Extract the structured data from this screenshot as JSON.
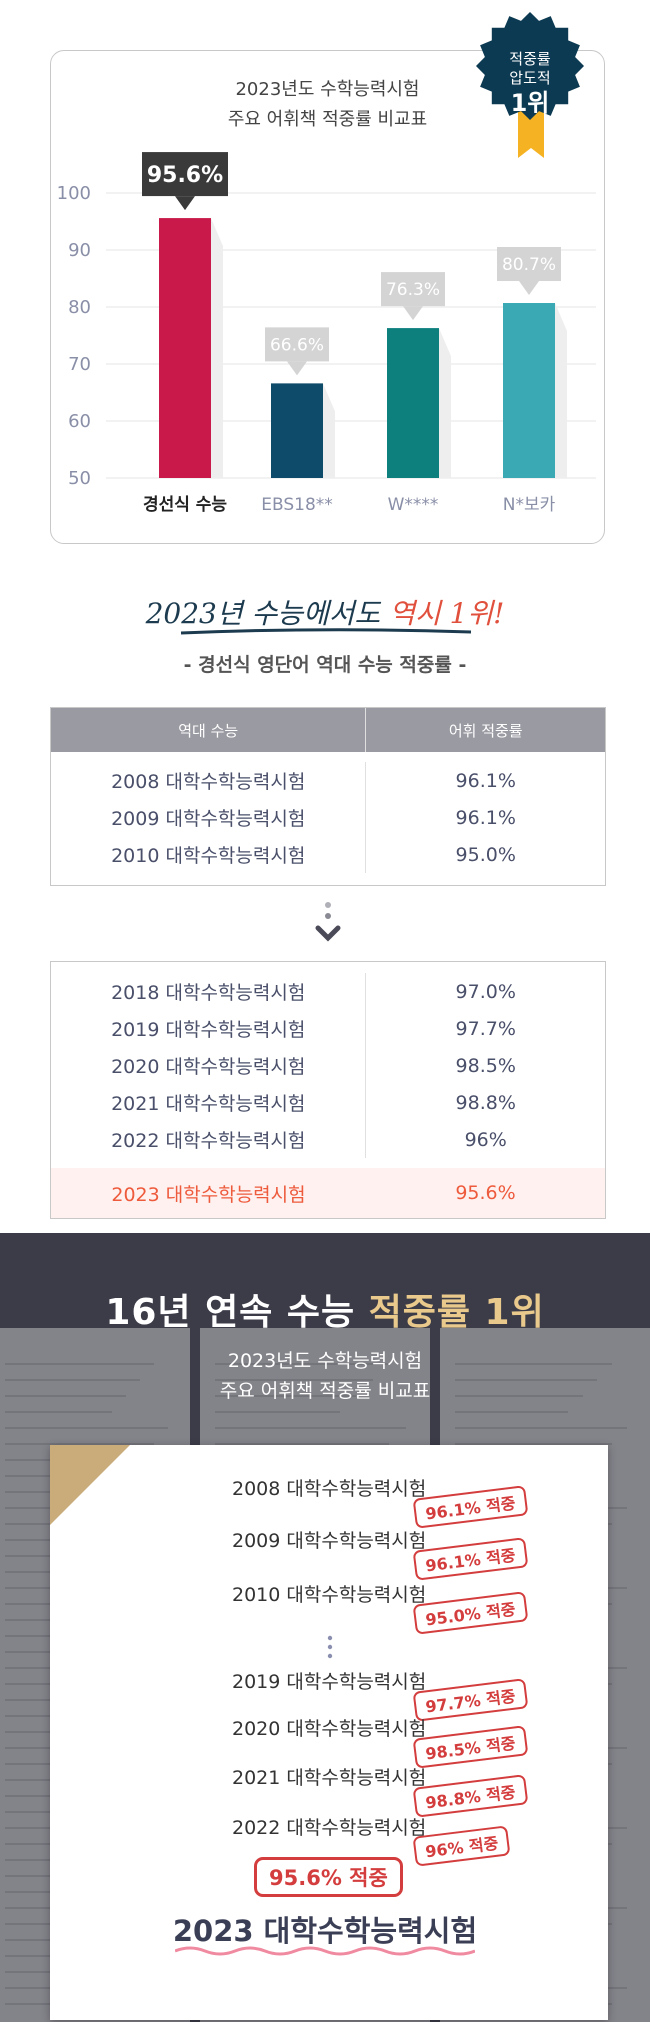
{
  "chart_data": {
    "type": "bar",
    "title": "2023년도 수학능력시험\n주요 어휘책 적중률 비교표",
    "categories": [
      "경선식 수능",
      "EBS18**",
      "W****",
      "N*보카"
    ],
    "values": [
      95.6,
      66.6,
      76.3,
      80.7
    ],
    "value_labels": [
      "95.6%",
      "66.6%",
      "76.3%",
      "80.7%"
    ],
    "colors": [
      "#c8194a",
      "#0e4a6a",
      "#0d7f7c",
      "#3aa9b4"
    ],
    "ylim": [
      50,
      100
    ],
    "yticks": [
      50,
      60,
      70,
      80,
      90,
      100
    ],
    "grid": true
  },
  "badge": {
    "line1": "적중률",
    "line2": "압도적",
    "line3": "1위",
    "color": "#0c3a52",
    "ribbon": "#f5b324"
  },
  "slogan": {
    "main": "2023년 수능에서도 ",
    "highlight": "역시 1위!"
  },
  "subtitle": "- 경선식 영단어 역대 수능 적중률 -",
  "table": {
    "headers": [
      "역대 수능",
      "어휘 적중률"
    ],
    "rows_top": [
      {
        "exam": "2008 대학수학능력시험",
        "rate": "96.1%"
      },
      {
        "exam": "2009 대학수학능력시험",
        "rate": "96.1%"
      },
      {
        "exam": "2010 대학수학능력시험",
        "rate": "95.0%"
      }
    ],
    "rows_bottom": [
      {
        "exam": "2018 대학수학능력시험",
        "rate": "97.0%"
      },
      {
        "exam": "2019 대학수학능력시험",
        "rate": "97.7%"
      },
      {
        "exam": "2020 대학수학능력시험",
        "rate": "98.5%"
      },
      {
        "exam": "2021 대학수학능력시험",
        "rate": "98.8%"
      },
      {
        "exam": "2022 대학수학능력시험",
        "rate": "96%"
      }
    ],
    "highlight_row": {
      "exam": "2023 대학수학능력시험",
      "rate": "95.6%"
    }
  },
  "dark_section": {
    "heading_main": "16년 연속 수능 ",
    "heading_gold": "적중률 1위",
    "sub_line1": "2023년도 수학능력시험",
    "sub_line2": "주요 어휘책 적중률 비교표",
    "stamps": [
      {
        "exam": "2008 대학수학능력시험",
        "stamp": "96.1% 적중"
      },
      {
        "exam": "2009 대학수학능력시험",
        "stamp": "96.1% 적중"
      },
      {
        "exam": "2010 대학수학능력시험",
        "stamp": "95.0% 적중"
      },
      {
        "exam": "2019 대학수학능력시험",
        "stamp": "97.7% 적중"
      },
      {
        "exam": "2020 대학수학능력시험",
        "stamp": "98.5% 적중"
      },
      {
        "exam": "2021 대학수학능력시험",
        "stamp": "98.8% 적중"
      },
      {
        "exam": "2022 대학수학능력시험",
        "stamp": "96% 적중"
      }
    ],
    "final_stamp": "95.6% 적중",
    "final_exam": "2023 대학수학능력시험"
  }
}
